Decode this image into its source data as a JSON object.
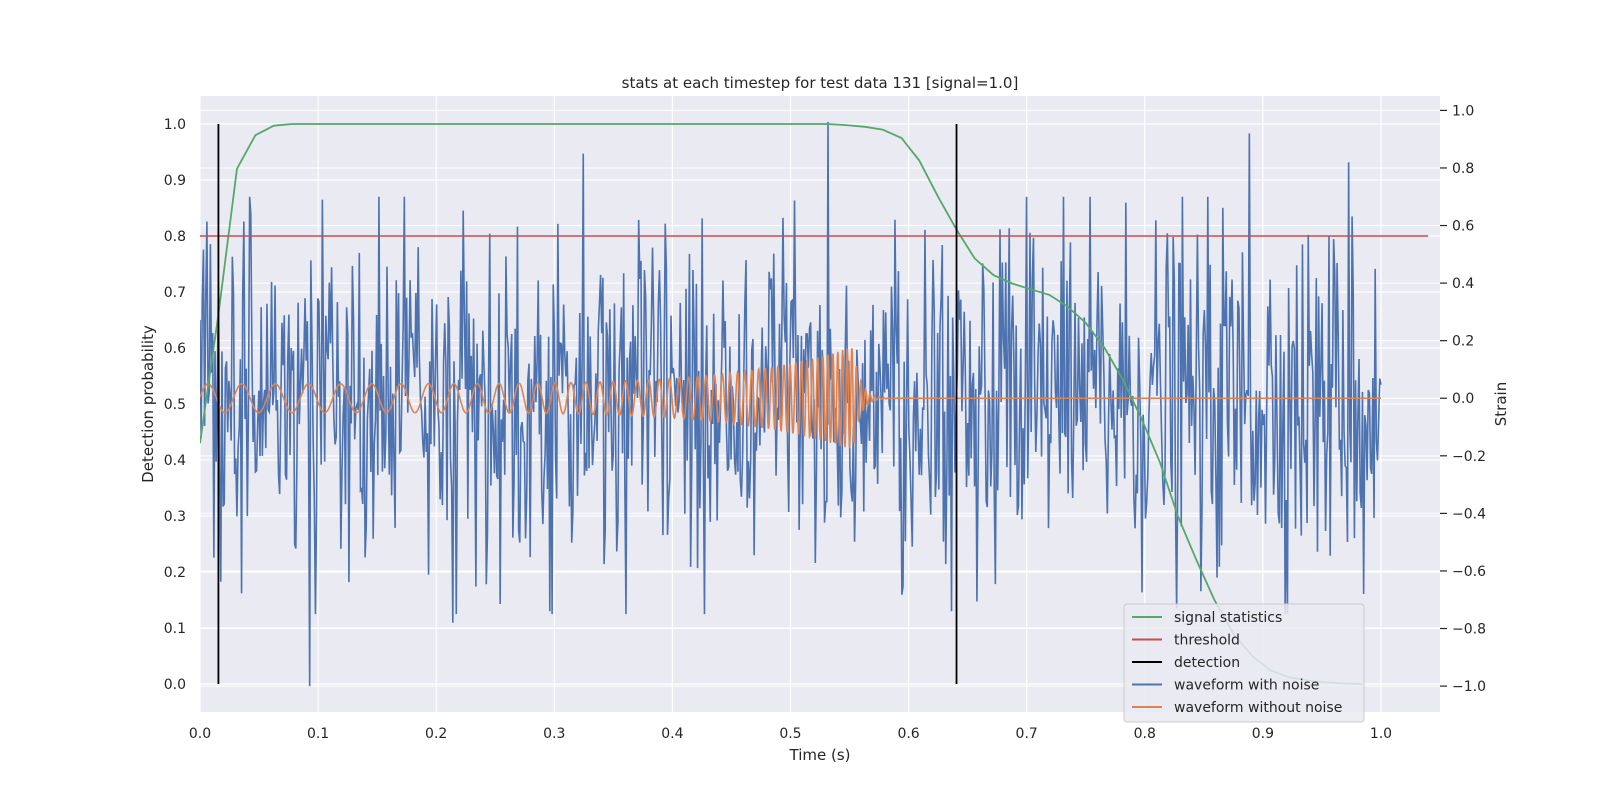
{
  "chart_data": {
    "type": "line",
    "title": "stats at each timestep for test data 131 [signal=1.0]",
    "xlabel": "Time (s)",
    "ylabel": "Detection probability",
    "y2label": "Strain",
    "xlim": [
      0.0,
      1.05
    ],
    "ylim": [
      -0.05,
      1.05
    ],
    "y2lim": [
      -1.09,
      1.05
    ],
    "x_ticks": [
      "0.0",
      "0.1",
      "0.2",
      "0.3",
      "0.4",
      "0.5",
      "0.6",
      "0.7",
      "0.8",
      "0.9",
      "1.0"
    ],
    "y_ticks": [
      "0.0",
      "0.1",
      "0.2",
      "0.3",
      "0.4",
      "0.5",
      "0.6",
      "0.7",
      "0.8",
      "0.9",
      "1.0"
    ],
    "y2_ticks": [
      "−1.0",
      "−0.8",
      "−0.6",
      "−0.4",
      "−0.2",
      "0.0",
      "0.2",
      "0.4",
      "0.6",
      "0.8",
      "1.0"
    ],
    "grid": true,
    "legend_position": "lower right",
    "legend": [
      {
        "label": "signal statistics",
        "color": "#55a868"
      },
      {
        "label": "threshold",
        "color": "#c44e52"
      },
      {
        "label": "detection",
        "color": "#000000"
      },
      {
        "label": "waveform with noise",
        "color": "#4c72b0"
      },
      {
        "label": "waveform without noise",
        "color": "#dd8452"
      }
    ],
    "series": [
      {
        "name": "signal statistics",
        "axis": "left",
        "color": "#55a868",
        "x": [
          0.0,
          0.0156,
          0.0313,
          0.0469,
          0.0625,
          0.0781,
          0.0938,
          0.125,
          0.25,
          0.375,
          0.5,
          0.531,
          0.547,
          0.563,
          0.578,
          0.594,
          0.609,
          0.625,
          0.641,
          0.656,
          0.672,
          0.688,
          0.703,
          0.719,
          0.734,
          0.75,
          0.766,
          0.781,
          0.797,
          0.813,
          0.828,
          0.844,
          0.859,
          0.875,
          0.891,
          0.906,
          0.922,
          0.938,
          0.953,
          0.969,
          0.984
        ],
        "y": [
          0.43,
          0.66,
          0.92,
          0.98,
          0.997,
          1.0,
          1.0,
          1.0,
          1.0,
          1.0,
          1.0,
          1.0,
          0.998,
          0.995,
          0.99,
          0.975,
          0.935,
          0.87,
          0.81,
          0.76,
          0.73,
          0.715,
          0.705,
          0.695,
          0.675,
          0.645,
          0.6,
          0.545,
          0.475,
          0.395,
          0.3,
          0.22,
          0.15,
          0.09,
          0.05,
          0.025,
          0.012,
          0.006,
          0.003,
          0.001,
          0.0
        ]
      },
      {
        "name": "threshold",
        "axis": "left",
        "color": "#c44e52",
        "x": [
          0.0,
          1.04
        ],
        "y": [
          0.8,
          0.8
        ]
      },
      {
        "name": "detection",
        "axis": "left",
        "color": "#000000",
        "segments": [
          {
            "x": 0.0156,
            "y_from": 0.0,
            "y_to": 1.0
          },
          {
            "x": 0.6406,
            "y_from": 0.0,
            "y_to": 1.0
          }
        ]
      },
      {
        "name": "waveform with noise",
        "axis": "right",
        "color": "#4c72b0",
        "x_range": [
          0.0,
          1.0
        ],
        "num_points": 1024,
        "std": 0.3,
        "peaks": [
          {
            "x": 0.093,
            "y": -1.0
          },
          {
            "x": 0.532,
            "y": 0.96
          },
          {
            "x": 0.889,
            "y": 0.92
          },
          {
            "x": 0.973,
            "y": 0.82
          },
          {
            "x": 0.325,
            "y": 0.85
          },
          {
            "x": 0.104,
            "y": 0.69
          },
          {
            "x": 0.214,
            "y": -0.78
          },
          {
            "x": 0.296,
            "y": -0.74
          },
          {
            "x": 0.636,
            "y": -0.74
          },
          {
            "x": 0.985,
            "y": -0.68
          }
        ]
      },
      {
        "name": "waveform without noise",
        "axis": "right",
        "color": "#dd8452",
        "x_range": [
          0.0,
          1.0
        ],
        "amplitude_start": 0.05,
        "amplitude_peak": 0.18,
        "merger_time": 0.553,
        "frequency_start_hz": 35,
        "frequency_end_hz": 260
      }
    ]
  }
}
